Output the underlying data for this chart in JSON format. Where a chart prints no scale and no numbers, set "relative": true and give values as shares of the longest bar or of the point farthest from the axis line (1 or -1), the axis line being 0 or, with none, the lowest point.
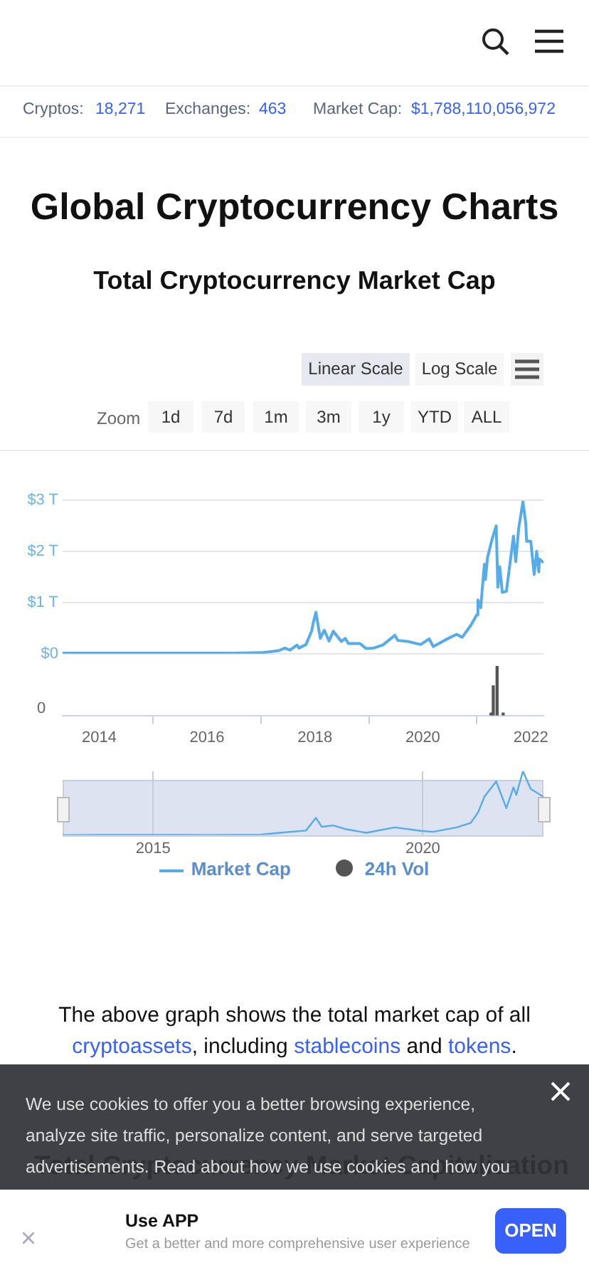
{
  "chart_data": [
    {
      "type": "line",
      "title": "Global Cryptocurrency Charts",
      "subtitle": "Total Cryptocurrency Market Cap",
      "x": [
        "2013-04-28",
        "2013-12-01",
        "2014-06-01",
        "2015-01-15",
        "2016-01-01",
        "2016-06-15",
        "2017-01-05",
        "2017-05-01",
        "2017-06-12",
        "2017-07-15",
        "2017-09-01",
        "2017-09-15",
        "2017-11-01",
        "2017-12-10",
        "2017-12-20",
        "2018-01-07",
        "2018-02-06",
        "2018-03-05",
        "2018-04-06",
        "2018-05-05",
        "2018-06-28",
        "2018-07-25",
        "2018-08-15",
        "2018-11-01",
        "2018-12-14",
        "2019-02-01",
        "2019-04-05",
        "2019-06-26",
        "2019-07-16",
        "2019-09-20",
        "2019-12-17",
        "2020-02-13",
        "2020-03-12",
        "2020-06-01",
        "2020-08-17",
        "2020-09-23",
        "2020-11-20",
        "2020-12-31",
        "2021-01-08",
        "2021-01-27",
        "2021-02-21",
        "2021-02-28",
        "2021-03-14",
        "2021-04-15",
        "2021-05-12",
        "2021-05-23",
        "2021-06-05",
        "2021-06-22",
        "2021-07-20",
        "2021-09-06",
        "2021-09-21",
        "2021-10-05",
        "2021-10-11",
        "2021-11-09",
        "2021-11-28",
        "2021-12-04",
        "2022-01-01",
        "2022-01-24",
        "2022-02-10",
        "2022-02-24",
        "2022-03-01",
        "2022-03-28"
      ],
      "series": [
        {
          "name": "Market Cap",
          "color": "#55acea",
          "values": [
            0.01,
            0.01,
            0.01,
            0.01,
            0.01,
            0.01,
            0.02,
            0.06,
            0.11,
            0.07,
            0.17,
            0.11,
            0.18,
            0.45,
            0.6,
            0.81,
            0.3,
            0.46,
            0.25,
            0.44,
            0.24,
            0.3,
            0.2,
            0.2,
            0.1,
            0.11,
            0.17,
            0.36,
            0.26,
            0.24,
            0.18,
            0.29,
            0.14,
            0.27,
            0.38,
            0.32,
            0.55,
            0.76,
            1.05,
            0.9,
            1.75,
            1.45,
            1.88,
            2.25,
            2.5,
            1.3,
            1.7,
            1.2,
            1.22,
            2.3,
            1.8,
            2.25,
            2.45,
            2.97,
            2.55,
            2.2,
            2.2,
            1.55,
            2.0,
            1.6,
            1.85,
            1.78
          ]
        }
      ],
      "xlim": [
        "2013-04-28",
        "2022-03-28"
      ],
      "ylim": [
        0,
        3
      ],
      "yticks": [
        {
          "value": 0,
          "label": "$0"
        },
        {
          "value": 1,
          "label": "$1 T"
        },
        {
          "value": 2,
          "label": "$2 T"
        },
        {
          "value": 3,
          "label": "$3 T"
        }
      ],
      "tick_labels": "y",
      "grid": "y",
      "legend": "bottom",
      "annotations": [
        "Cryptos:",
        "18,271",
        "Exchanges:",
        "463",
        "Market Cap:",
        "$1,788,110,056,972",
        "Linear Scale",
        "Log Scale",
        "Zoom",
        "1d",
        "7d",
        "1m",
        "3m",
        "1y",
        "YTD",
        "ALL",
        "The above graph shows the total market cap of all",
        "cryptoassets",
        ", including ",
        "stablecoins",
        " and ",
        "tokens",
        ".",
        "Total Cryptocurrency Market Capitalization",
        "We use cookies to offer you a better browsing experience, analyze site traffic, personalize content, and serve targeted advertisements. Read about how we use cookies and how you can",
        "Use APP",
        "Get a better and more comprehensive user experience",
        "OPEN"
      ]
    },
    {
      "type": "bar",
      "relative": true,
      "x": [
        "2021-04-07",
        "2021-04-22",
        "2021-05-18",
        "2021-06-28"
      ],
      "series": [
        {
          "name": "24h Vol",
          "color": "#555555",
          "values": [
            0.05,
            0.6,
            1,
            0.05
          ]
        }
      ],
      "xlim": [
        "2013-04-28",
        "2022-03-28"
      ],
      "xticks": [
        "2014",
        "2016",
        "2018",
        "2020",
        "2022"
      ],
      "tick_labels": "x",
      "legend": "bottom",
      "annotations": [
        "0"
      ]
    },
    {
      "type": "line",
      "relative": true,
      "x": [
        "2013-04-28",
        "2014-01-01",
        "2016-01-01",
        "2017-01-01",
        "2017-06-01",
        "2017-11-01",
        "2018-01-07",
        "2018-02-15",
        "2018-05-05",
        "2018-08-01",
        "2018-12-14",
        "2019-06-26",
        "2019-12-17",
        "2020-03-12",
        "2020-08-17",
        "2020-11-20",
        "2021-01-08",
        "2021-02-21",
        "2021-05-12",
        "2021-07-20",
        "2021-09-06",
        "2021-09-25",
        "2021-11-09",
        "2022-01-01",
        "2022-03-28"
      ],
      "series": [
        {
          "color": "#55acea",
          "values": [
            0,
            0.005,
            0.003,
            0.006,
            0.04,
            0.07,
            0.27,
            0.13,
            0.15,
            0.09,
            0.035,
            0.12,
            0.065,
            0.05,
            0.12,
            0.19,
            0.35,
            0.6,
            0.84,
            0.42,
            0.75,
            0.63,
            1,
            0.72,
            0.6
          ]
        }
      ],
      "xlim": [
        "2013-04-28",
        "2022-03-28"
      ],
      "xticks": [
        "2015",
        "2020"
      ],
      "tick_labels": "x"
    }
  ]
}
